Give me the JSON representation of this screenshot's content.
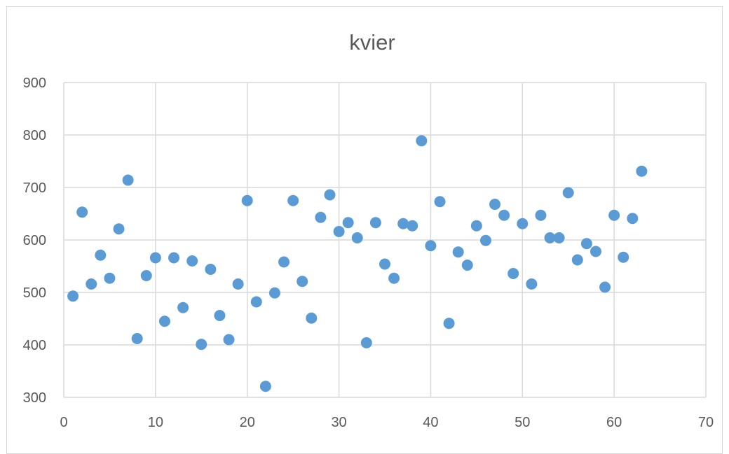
{
  "chart_data": {
    "type": "scatter",
    "title": "kvier",
    "xlabel": "",
    "ylabel": "",
    "xlim": [
      0,
      70
    ],
    "ylim": [
      300,
      900
    ],
    "x_ticks": [
      0,
      10,
      20,
      30,
      40,
      50,
      60,
      70
    ],
    "y_ticks": [
      300,
      400,
      500,
      600,
      700,
      800,
      900
    ],
    "grid": true,
    "legend": "none",
    "marker_color": "#5b9bd5",
    "series": [
      {
        "points": [
          [
            1,
            493
          ],
          [
            2,
            653
          ],
          [
            3,
            516
          ],
          [
            4,
            571
          ],
          [
            5,
            527
          ],
          [
            6,
            621
          ],
          [
            7,
            714
          ],
          [
            8,
            412
          ],
          [
            9,
            532
          ],
          [
            10,
            566
          ],
          [
            11,
            445
          ],
          [
            12,
            566
          ],
          [
            13,
            471
          ],
          [
            14,
            560
          ],
          [
            15,
            401
          ],
          [
            16,
            544
          ],
          [
            17,
            456
          ],
          [
            18,
            410
          ],
          [
            19,
            516
          ],
          [
            20,
            675
          ],
          [
            21,
            482
          ],
          [
            22,
            321
          ],
          [
            23,
            499
          ],
          [
            24,
            558
          ],
          [
            25,
            675
          ],
          [
            26,
            521
          ],
          [
            27,
            451
          ],
          [
            28,
            643
          ],
          [
            29,
            686
          ],
          [
            30,
            616
          ],
          [
            31,
            633
          ],
          [
            32,
            604
          ],
          [
            33,
            404
          ],
          [
            34,
            633
          ],
          [
            35,
            554
          ],
          [
            36,
            527
          ],
          [
            37,
            631
          ],
          [
            38,
            627
          ],
          [
            39,
            789
          ],
          [
            40,
            589
          ],
          [
            41,
            673
          ],
          [
            42,
            441
          ],
          [
            43,
            577
          ],
          [
            44,
            552
          ],
          [
            45,
            627
          ],
          [
            46,
            599
          ],
          [
            47,
            668
          ],
          [
            48,
            647
          ],
          [
            49,
            536
          ],
          [
            50,
            631
          ],
          [
            51,
            516
          ],
          [
            52,
            647
          ],
          [
            53,
            604
          ],
          [
            54,
            604
          ],
          [
            55,
            690
          ],
          [
            56,
            562
          ],
          [
            57,
            593
          ],
          [
            58,
            578
          ],
          [
            59,
            510
          ],
          [
            60,
            647
          ],
          [
            61,
            567
          ],
          [
            62,
            641
          ],
          [
            63,
            731
          ]
        ]
      }
    ]
  }
}
